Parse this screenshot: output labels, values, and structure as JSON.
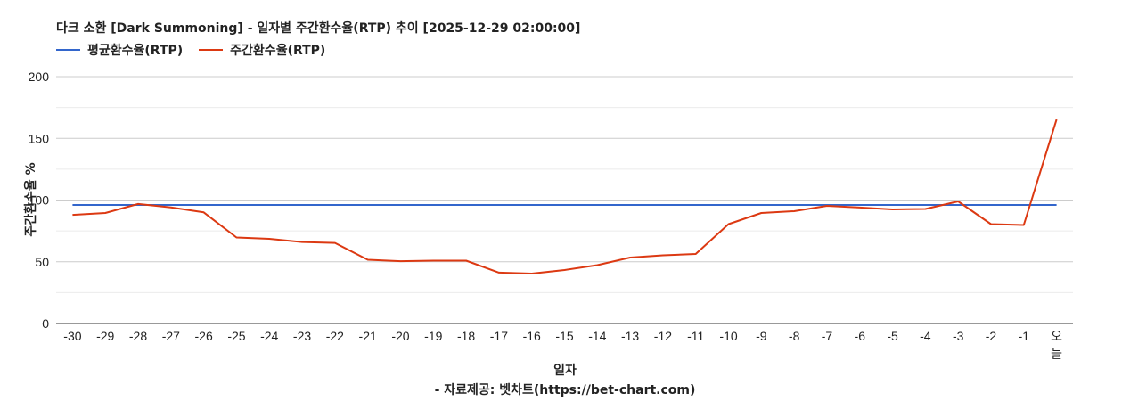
{
  "chart_data": {
    "type": "line",
    "title": "다크 소환 [Dark Summoning] - 일자별 주간환수율(RTP) 추이 [2025-12-29 02:00:00]",
    "xlabel": "일자",
    "ylabel": "주간환수율 %",
    "credit": "- 자료제공: 벳차트(https://bet-chart.com)",
    "categories": [
      "-30",
      "-29",
      "-28",
      "-27",
      "-26",
      "-25",
      "-24",
      "-23",
      "-22",
      "-21",
      "-20",
      "-19",
      "-18",
      "-17",
      "-16",
      "-15",
      "-14",
      "-13",
      "-12",
      "-11",
      "-10",
      "-9",
      "-8",
      "-7",
      "-6",
      "-5",
      "-4",
      "-3",
      "-2",
      "-1",
      "오늘"
    ],
    "series": [
      {
        "name": "평균환수율(RTP)",
        "color": "#3366cc",
        "values": [
          96,
          96,
          96,
          96,
          96,
          96,
          96,
          96,
          96,
          96,
          96,
          96,
          96,
          96,
          96,
          96,
          96,
          96,
          96,
          96,
          96,
          96,
          96,
          96,
          96,
          96,
          96,
          96,
          96,
          96,
          96
        ]
      },
      {
        "name": "주간환수율(RTP)",
        "color": "#dc3912",
        "values": [
          88,
          89.5,
          96.8,
          94,
          90,
          69.7,
          68.6,
          66,
          65.3,
          51.6,
          50.5,
          50.9,
          50.9,
          41.2,
          40.4,
          43.3,
          47.3,
          53.4,
          55.2,
          56.3,
          80.5,
          89.5,
          91,
          95.3,
          93.9,
          92.4,
          92.8,
          98.9,
          80.5,
          79.8,
          165.3
        ]
      }
    ],
    "yticks": [
      0,
      50,
      100,
      150,
      200
    ],
    "ylim": [
      0,
      200
    ],
    "grid": true,
    "legend_position": "top"
  }
}
